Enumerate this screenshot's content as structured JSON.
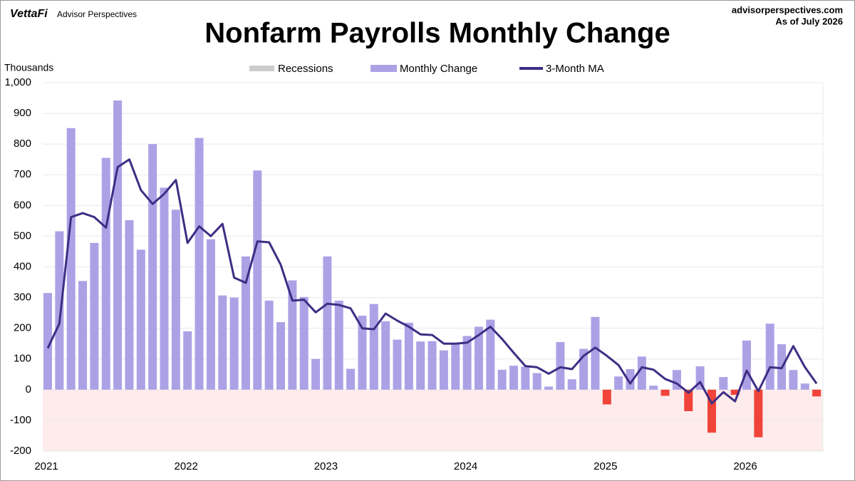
{
  "chart_data": {
    "type": "bar-line",
    "title": "Nonfarm Payrolls Monthly Change",
    "brand": "VettaFi",
    "brand_sub": "Advisor Perspectives",
    "source": "advisorperspectives.com",
    "as_of": "As of July 2026",
    "y_label": "Thousands",
    "categories": [
      "2021",
      null,
      null,
      null,
      null,
      null,
      null,
      null,
      null,
      null,
      null,
      null,
      "2022",
      null,
      null,
      null,
      null,
      null,
      null,
      null,
      null,
      null,
      null,
      null,
      "2023",
      null,
      null,
      null,
      null,
      null,
      null,
      null,
      null,
      null,
      null,
      null,
      "2024",
      null,
      null,
      null,
      null,
      null,
      null,
      null,
      null,
      null,
      null,
      null,
      "2025",
      null,
      null,
      null,
      null,
      null,
      null,
      null,
      null,
      null,
      null,
      null,
      "2026",
      null,
      null,
      null,
      null,
      null,
      null
    ],
    "recessions": {
      "name": "Recessions",
      "color": "#cccccc"
    },
    "series": [
      {
        "name": "Monthly Change",
        "type": "bar",
        "color": "#ada1e6",
        "negative_color": "#f0443a",
        "values": [
          315,
          516,
          852,
          354,
          478,
          755,
          942,
          552,
          456,
          800,
          658,
          586,
          190,
          820,
          490,
          307,
          300,
          434,
          714,
          290,
          220,
          356,
          302,
          100,
          434,
          290,
          68,
          241,
          279,
          223,
          163,
          218,
          157,
          158,
          128,
          150,
          175,
          205,
          228,
          65,
          78,
          75,
          54,
          10,
          155,
          34,
          133,
          237,
          -48,
          43,
          67,
          108,
          13,
          -20,
          64,
          -70,
          76,
          -140,
          41,
          -17,
          160,
          -155,
          215,
          148,
          64,
          20,
          -22
        ]
      },
      {
        "name": "3-Month MA",
        "type": "line",
        "color": "#3f2d84",
        "values": [
          135,
          215,
          562,
          575,
          562,
          528,
          725,
          750,
          650,
          605,
          638,
          683,
          478,
          532,
          500,
          540,
          365,
          348,
          483,
          480,
          407,
          290,
          293,
          252,
          280,
          276,
          265,
          200,
          197,
          248,
          225,
          205,
          180,
          178,
          150,
          150,
          153,
          178,
          205,
          165,
          120,
          77,
          73,
          52,
          73,
          67,
          110,
          137,
          110,
          80,
          20,
          73,
          65,
          35,
          20,
          -10,
          25,
          -45,
          -8,
          -38,
          62,
          -5,
          73,
          70,
          142,
          73,
          20
        ]
      }
    ],
    "ylim": [
      -200,
      1000
    ],
    "yticks": [
      -200,
      -100,
      0,
      100,
      200,
      300,
      400,
      500,
      600,
      700,
      800,
      900,
      {
        "value": 1000,
        "label": "1,000"
      }
    ],
    "negative_region_color": "#fdeceb",
    "grid": true
  }
}
